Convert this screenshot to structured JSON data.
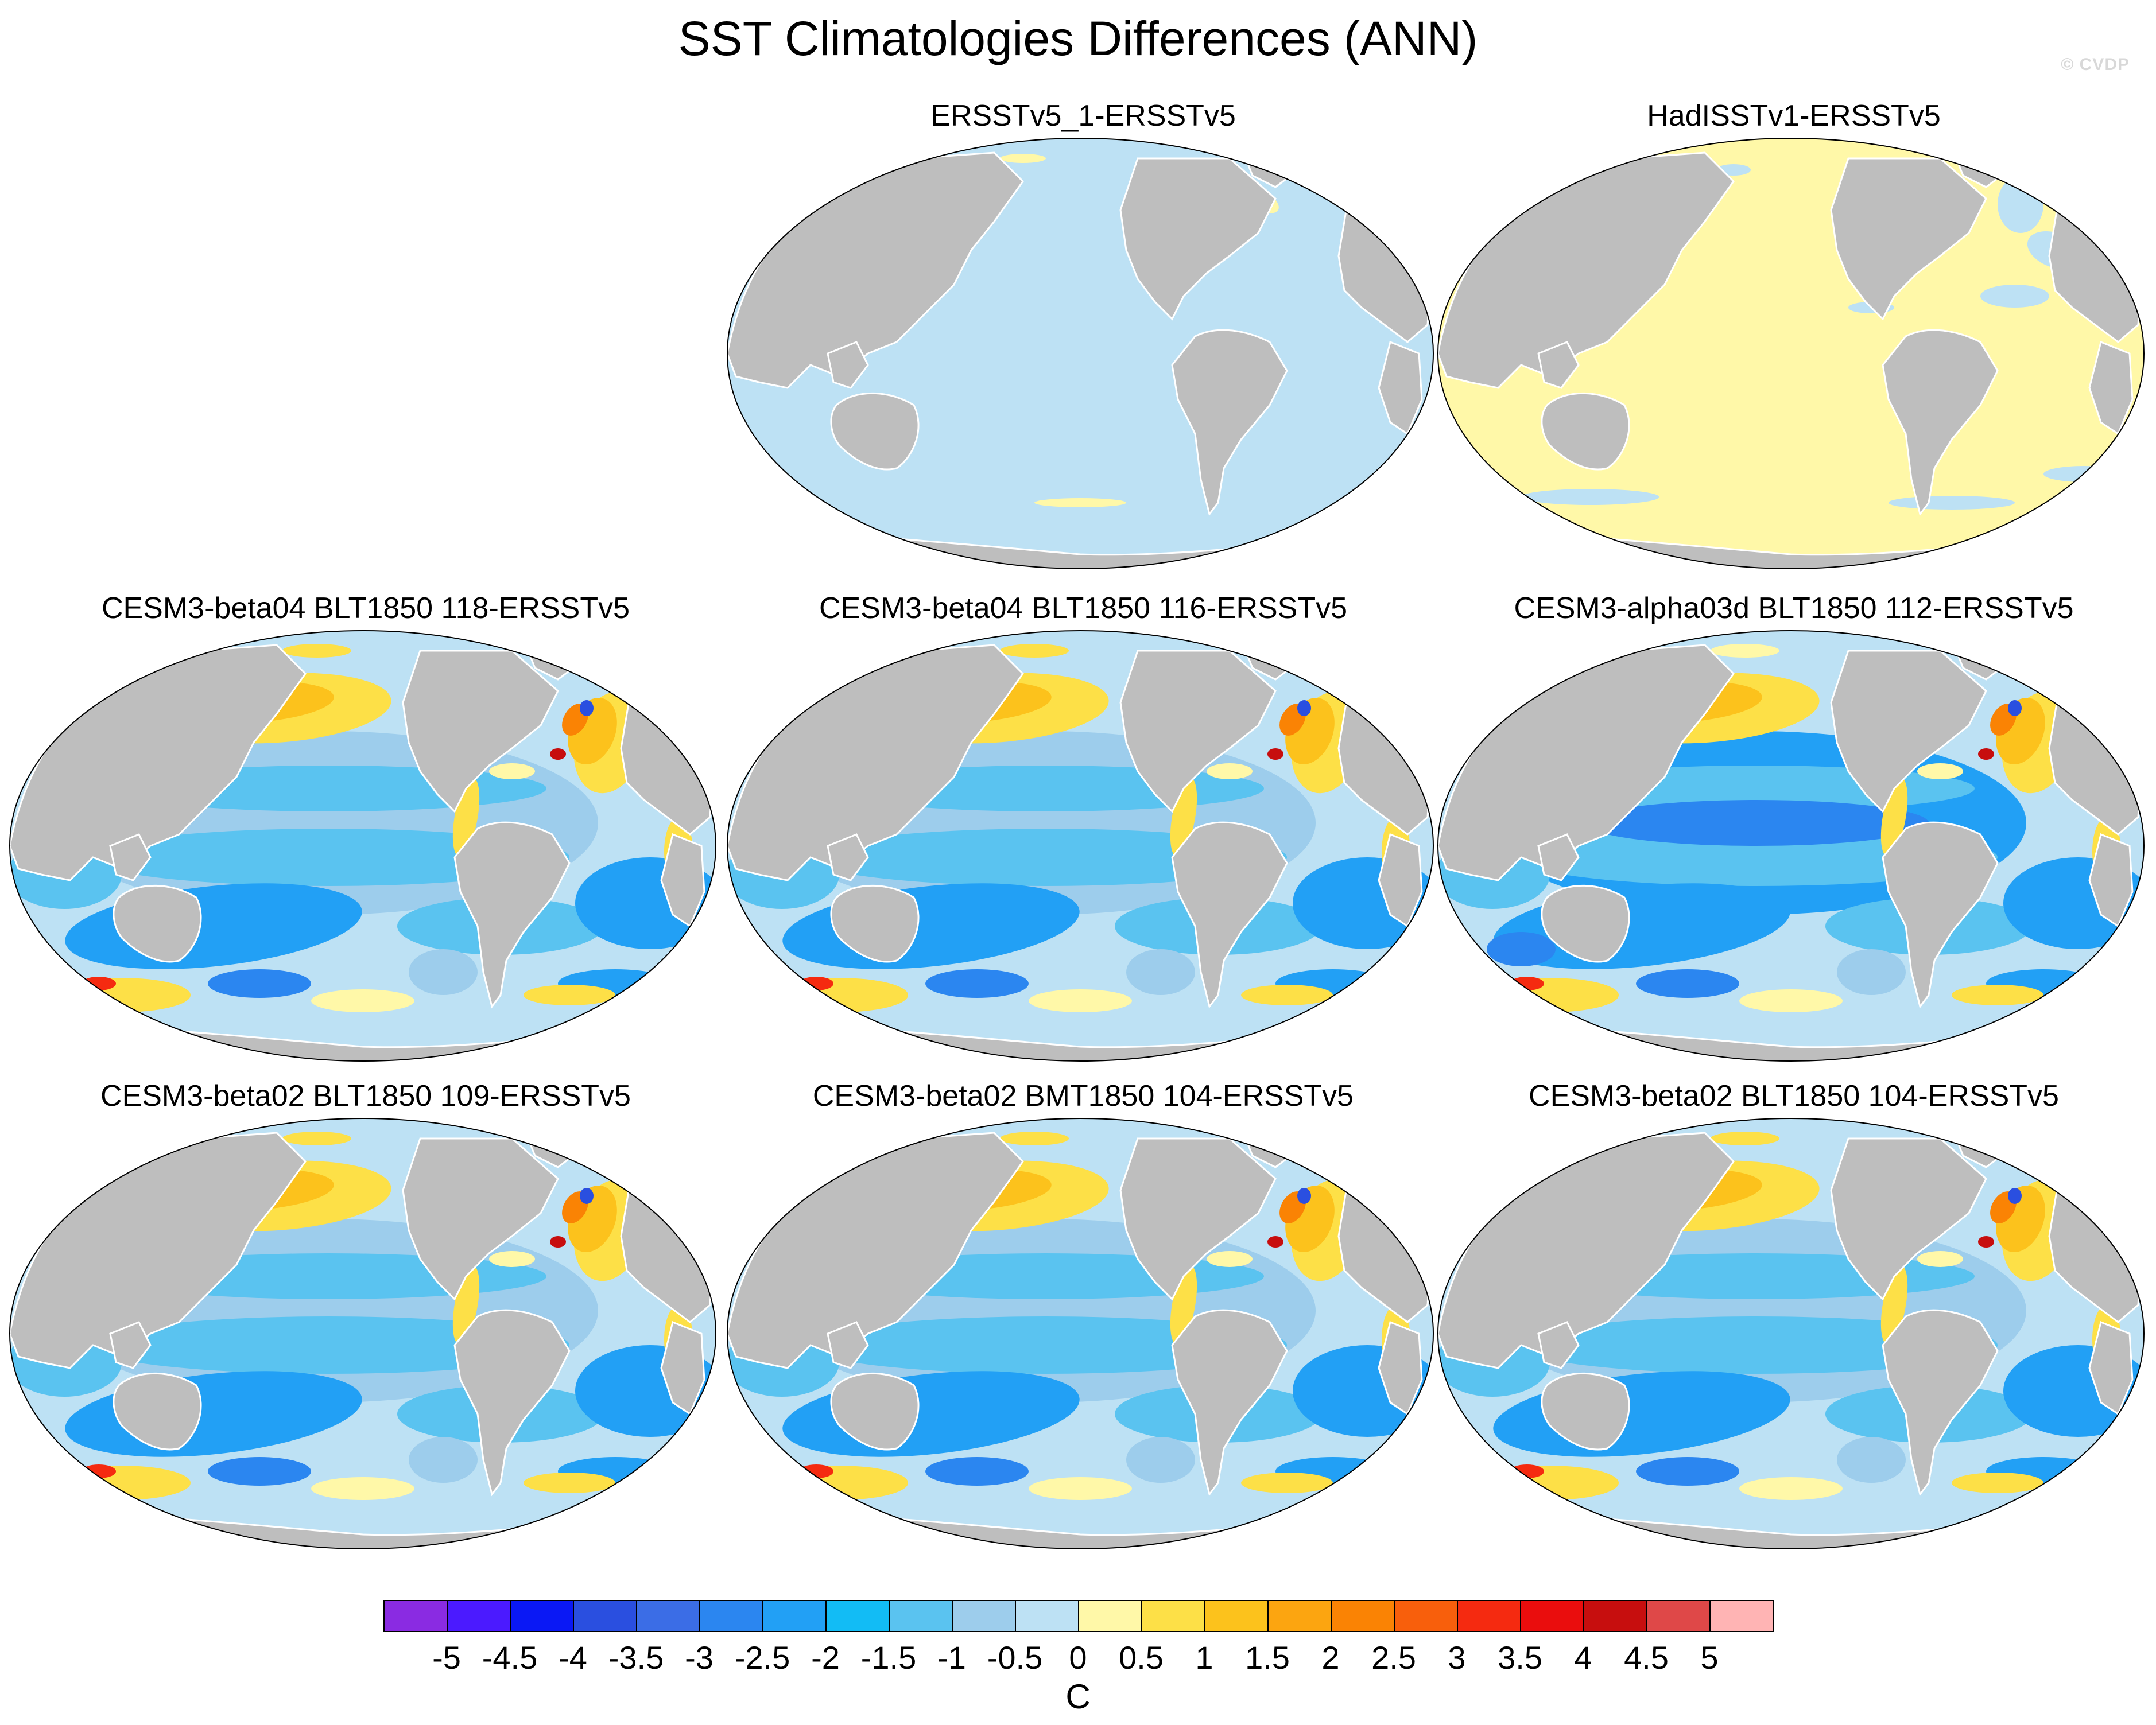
{
  "figure": {
    "title": "SST Climatologies Differences (ANN)",
    "credit": "© CVDP"
  },
  "panels": [
    {
      "id": "ersst-1",
      "title": "ERSSTv5_1-ERSSTv5",
      "pattern": "near-zero-negative"
    },
    {
      "id": "hadisst",
      "title": "HadISSTv1-ERSSTv5",
      "pattern": "near-zero-positive"
    },
    {
      "id": "beta04-118",
      "title": "CESM3-beta04 BLT1850 118-ERSSTv5",
      "pattern": "model"
    },
    {
      "id": "beta04-116",
      "title": "CESM3-beta04 BLT1850 116-ERSSTv5",
      "pattern": "model"
    },
    {
      "id": "alpha03d-112",
      "title": "CESM3-alpha03d BLT1850 112-ERSSTv5",
      "pattern": "model-cold"
    },
    {
      "id": "beta02-blt109",
      "title": "CESM3-beta02 BLT1850 109-ERSSTv5",
      "pattern": "model"
    },
    {
      "id": "beta02-bmt104",
      "title": "CESM3-beta02 BMT1850 104-ERSSTv5",
      "pattern": "model"
    },
    {
      "id": "beta02-blt104",
      "title": "CESM3-beta02 BLT1850 104-ERSSTv5",
      "pattern": "model"
    }
  ],
  "colorbar": {
    "units": "C",
    "ticks": [
      "-5",
      "-4.5",
      "-4",
      "-3.5",
      "-3",
      "-2.5",
      "-2",
      "-1.5",
      "-1",
      "-0.5",
      "0",
      "0.5",
      "1",
      "1.5",
      "2",
      "2.5",
      "3",
      "3.5",
      "4",
      "4.5",
      "5"
    ],
    "colors": [
      "#8a2be2",
      "#4b1aff",
      "#0a18f5",
      "#2a4fe0",
      "#3b6de6",
      "#2b86f0",
      "#22a0f5",
      "#12bcf5",
      "#5ac3f0",
      "#9dcdec",
      "#bde1f4",
      "#fff8a8",
      "#fde047",
      "#fcc21c",
      "#fca510",
      "#fa8304",
      "#f85f0c",
      "#f52a10",
      "#ea0d0d",
      "#c70e0e",
      "#df4848",
      "#ffb4b4"
    ]
  },
  "colors": {
    "land": "#bebebe",
    "background": "#ffffff"
  }
}
